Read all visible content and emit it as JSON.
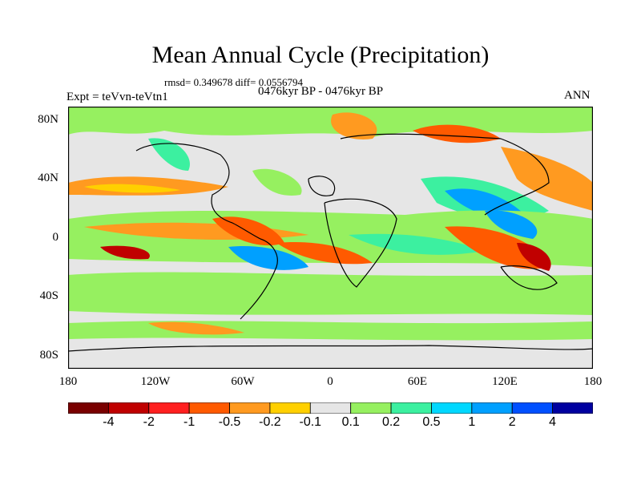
{
  "title": "Mean Annual Cycle (Precipitation)",
  "stats": "rmsd= 0.349678 diff= 0.0556794",
  "experiment": "Expt = teVvn-teVtn1",
  "period": "0476kyr BP - 0476kyr BP",
  "season": "ANN",
  "lat_labels": [
    "80N",
    "40N",
    "0",
    "40S",
    "80S"
  ],
  "lon_labels": [
    "180",
    "120W",
    "60W",
    "0",
    "60E",
    "120E",
    "180"
  ],
  "colorbar": {
    "colors": [
      "#7a0000",
      "#c00000",
      "#ff2020",
      "#ff5a00",
      "#ff9a20",
      "#ffd000",
      "#e6e6e6",
      "#96f060",
      "#3cf0a0",
      "#00d8ff",
      "#00a0ff",
      "#0050ff",
      "#0000a0"
    ],
    "labels": [
      "-4",
      "-2",
      "-1",
      "-0.5",
      "-0.2",
      "-0.1",
      "0.1",
      "0.2",
      "0.5",
      "1",
      "2",
      "4"
    ]
  }
}
